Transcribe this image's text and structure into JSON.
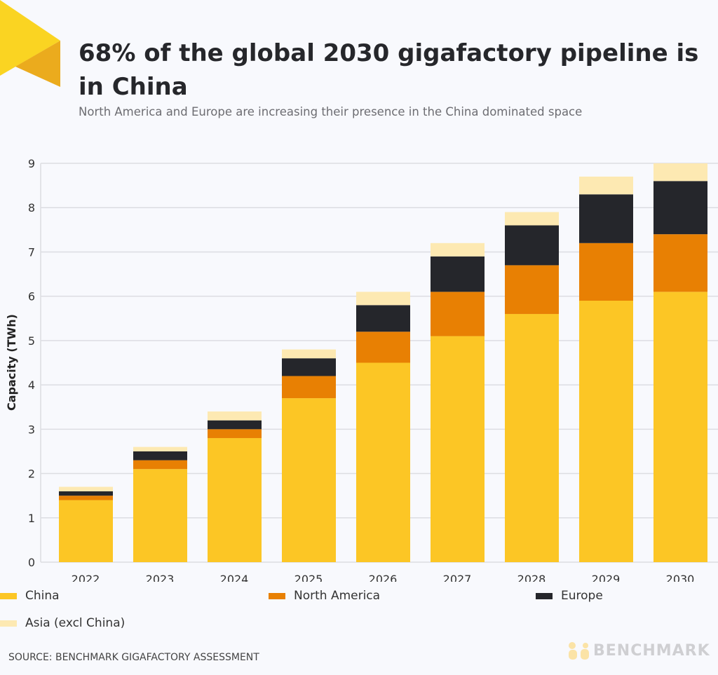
{
  "title": "68% of the global 2030 gigafactory pipeline is in China",
  "subtitle": "North America and Europe are increasing their presence in the China dominated space",
  "source": "SOURCE: BENCHMARK GIGAFACTORY ASSESSMENT",
  "logo_text": "BENCHMARK",
  "chart_data": {
    "type": "bar",
    "stacked": true,
    "categories": [
      "2022",
      "2023",
      "2024",
      "2025",
      "2026",
      "2027",
      "2028",
      "2029",
      "2030"
    ],
    "ylabel": "Capacity (TWh)",
    "xlabel": "",
    "ylim": [
      0,
      9
    ],
    "yticks": [
      0,
      1,
      2,
      3,
      4,
      5,
      6,
      7,
      8,
      9
    ],
    "grid": true,
    "legend_position": "bottom",
    "series": [
      {
        "name": "China",
        "color": "#fcc625",
        "values": [
          1.4,
          2.1,
          2.8,
          3.7,
          4.5,
          5.1,
          5.6,
          5.9,
          6.1
        ]
      },
      {
        "name": "North America",
        "color": "#e88003",
        "values": [
          0.1,
          0.2,
          0.2,
          0.5,
          0.7,
          1.0,
          1.1,
          1.3,
          1.3
        ]
      },
      {
        "name": "Europe",
        "color": "#25262b",
        "values": [
          0.1,
          0.2,
          0.2,
          0.4,
          0.6,
          0.8,
          0.9,
          1.1,
          1.2
        ]
      },
      {
        "name": "Asia (excl China)",
        "color": "#fde9b2",
        "values": [
          0.1,
          0.1,
          0.2,
          0.2,
          0.3,
          0.3,
          0.3,
          0.4,
          0.4
        ]
      }
    ]
  }
}
